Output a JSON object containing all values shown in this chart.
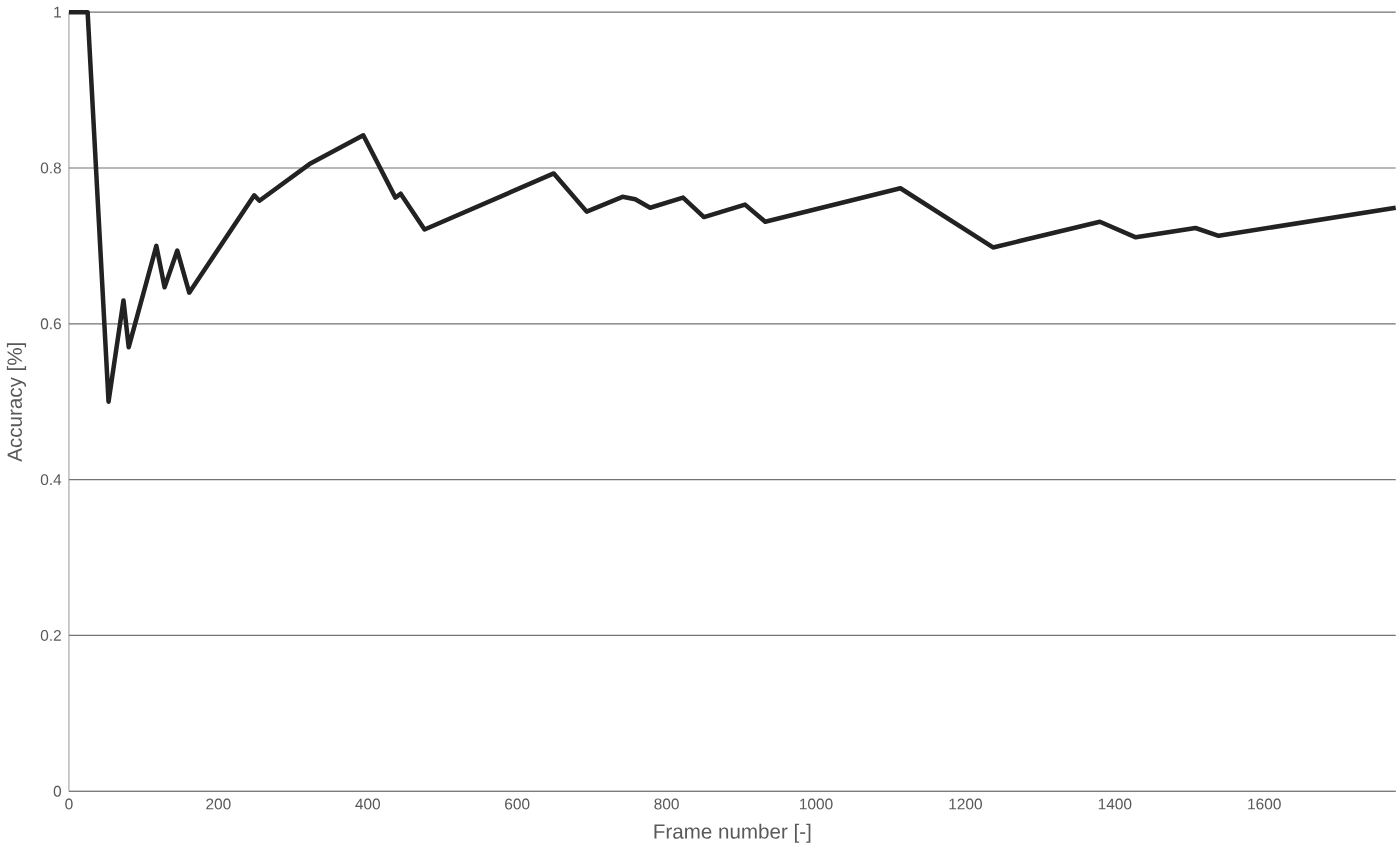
{
  "chart_data": {
    "type": "line",
    "xlabel": "Frame number [-]",
    "ylabel": "Accuracy  [%]",
    "xlim": [
      0,
      1776
    ],
    "xticks": [
      0,
      200,
      400,
      600,
      800,
      1000,
      1200,
      1400,
      1600
    ],
    "ylim": [
      0,
      1
    ],
    "yticks": [
      0,
      {
        "value": 0.2,
        "label": "0.2"
      },
      {
        "value": 0.4,
        "label": "0.4"
      },
      {
        "value": 0.6,
        "label": "0.6"
      },
      {
        "value": 0.8,
        "label": "0.8"
      },
      1
    ],
    "grid": "y",
    "marker": "none",
    "line_style": "solid",
    "series": [
      {
        "color": "#222222",
        "x": [
          0,
          25,
          53,
          73,
          80,
          117,
          128,
          145,
          161,
          248,
          255,
          322,
          394,
          437,
          444,
          476,
          649,
          693,
          741,
          758,
          778,
          822,
          850,
          905,
          932,
          1113,
          1237,
          1380,
          1428,
          1508,
          1539,
          1776
        ],
        "values": [
          1.0,
          1.0,
          0.5,
          0.63,
          0.57,
          0.7,
          0.647,
          0.694,
          0.64,
          0.765,
          0.758,
          0.805,
          0.842,
          0.762,
          0.767,
          0.721,
          0.793,
          0.744,
          0.763,
          0.76,
          0.749,
          0.762,
          0.737,
          0.753,
          0.731,
          0.774,
          0.698,
          0.731,
          0.711,
          0.723,
          0.713,
          0.749
        ]
      }
    ]
  }
}
